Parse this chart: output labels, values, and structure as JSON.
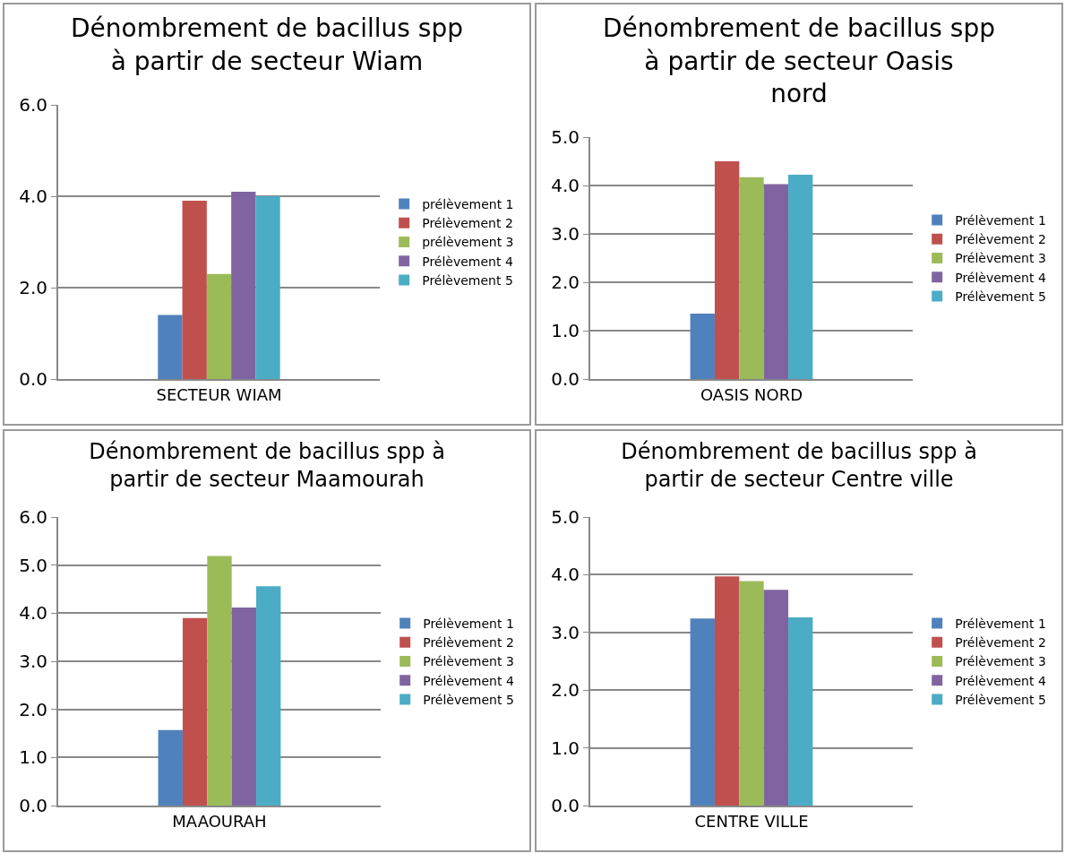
{
  "chart_data": [
    {
      "type": "bar",
      "title": "Dénombrement de bacillus spp à partir de secteur Wiam",
      "categories": [
        "SECTEUR WIAM"
      ],
      "ylim": [
        0,
        6
      ],
      "yticks": [
        {
          "value": 0,
          "label": "0.0"
        },
        {
          "value": 2,
          "label": "2.0"
        },
        {
          "value": 4,
          "label": "4.0"
        },
        {
          "value": 6,
          "label": "6.0"
        }
      ],
      "grid": "y",
      "legend": "right",
      "series": [
        {
          "name": "prélèvement 1",
          "color": "#4f81bd",
          "values": [
            1.4
          ]
        },
        {
          "name": "Prélèvement 2",
          "color": "#c0504d",
          "values": [
            3.9
          ]
        },
        {
          "name": "prélèvement 3",
          "color": "#9bbb59",
          "values": [
            2.3
          ]
        },
        {
          "name": "Prélèvement 4",
          "color": "#8064a2",
          "values": [
            4.1
          ]
        },
        {
          "name": "Prélèvement 5",
          "color": "#4bacc6",
          "values": [
            4.0
          ]
        }
      ]
    },
    {
      "type": "bar",
      "title": "Dénombrement de bacillus spp à partir de secteur Oasis nord",
      "categories": [
        "OASIS NORD"
      ],
      "ylim": [
        0,
        5
      ],
      "yticks": [
        {
          "value": 0,
          "label": "0.0"
        },
        {
          "value": 1,
          "label": "1.0"
        },
        {
          "value": 2,
          "label": "2.0"
        },
        {
          "value": 3,
          "label": "3.0"
        },
        {
          "value": 4,
          "label": "4.0"
        },
        {
          "value": 5,
          "label": "5.0"
        }
      ],
      "grid": "y",
      "legend": "right",
      "series": [
        {
          "name": "Prélèvement 1",
          "color": "#4f81bd",
          "values": [
            1.35
          ]
        },
        {
          "name": "Prélèvement 2",
          "color": "#c0504d",
          "values": [
            4.5
          ]
        },
        {
          "name": "Prélèvement 3",
          "color": "#9bbb59",
          "values": [
            4.17
          ]
        },
        {
          "name": "Prélèvement 4",
          "color": "#8064a2",
          "values": [
            4.03
          ]
        },
        {
          "name": "Prélèvement 5",
          "color": "#4bacc6",
          "values": [
            4.22
          ]
        }
      ]
    },
    {
      "type": "bar",
      "title": "Dénombrement de bacillus spp à partir de secteur Maamourah",
      "categories": [
        "MAAOURAH"
      ],
      "ylim": [
        0,
        6
      ],
      "yticks": [
        {
          "value": 0,
          "label": "0.0"
        },
        {
          "value": 1,
          "label": "1.0"
        },
        {
          "value": 2,
          "label": "2.0"
        },
        {
          "value": 3,
          "label": "3.0"
        },
        {
          "value": 4,
          "label": "4.0"
        },
        {
          "value": 5,
          "label": "5.0"
        },
        {
          "value": 6,
          "label": "6.0"
        }
      ],
      "grid": "y",
      "legend": "right",
      "series": [
        {
          "name": "Prélèvement 1",
          "color": "#4f81bd",
          "values": [
            1.57
          ]
        },
        {
          "name": "Prélèvement 2",
          "color": "#c0504d",
          "values": [
            3.9
          ]
        },
        {
          "name": "Prélèvement 3",
          "color": "#9bbb59",
          "values": [
            5.19
          ]
        },
        {
          "name": "Prélèvement 4",
          "color": "#8064a2",
          "values": [
            4.12
          ]
        },
        {
          "name": "Prélèvement 5",
          "color": "#4bacc6",
          "values": [
            4.56
          ]
        }
      ]
    },
    {
      "type": "bar",
      "title": "Dénombrement de bacillus spp à partir de secteur Centre ville",
      "categories": [
        "CENTRE VILLE"
      ],
      "ylim": [
        0,
        5
      ],
      "yticks": [
        {
          "value": 0,
          "label": "0.0"
        },
        {
          "value": 1,
          "label": "1.0"
        },
        {
          "value": 2,
          "label": "2.0"
        },
        {
          "value": 3,
          "label": "3.0"
        },
        {
          "value": 4,
          "label": "4.0"
        },
        {
          "value": 5,
          "label": "5.0"
        }
      ],
      "grid": "y",
      "legend": "right",
      "series": [
        {
          "name": "Prélèvement 1",
          "color": "#4f81bd",
          "values": [
            3.24
          ]
        },
        {
          "name": "Prélèvement 2",
          "color": "#c0504d",
          "values": [
            3.97
          ]
        },
        {
          "name": "Prélèvement 3",
          "color": "#9bbb59",
          "values": [
            3.89
          ]
        },
        {
          "name": "Prélèvement 4",
          "color": "#8064a2",
          "values": [
            3.74
          ]
        },
        {
          "name": "Prélèvement 5",
          "color": "#4bacc6",
          "values": [
            3.26
          ]
        }
      ]
    }
  ]
}
